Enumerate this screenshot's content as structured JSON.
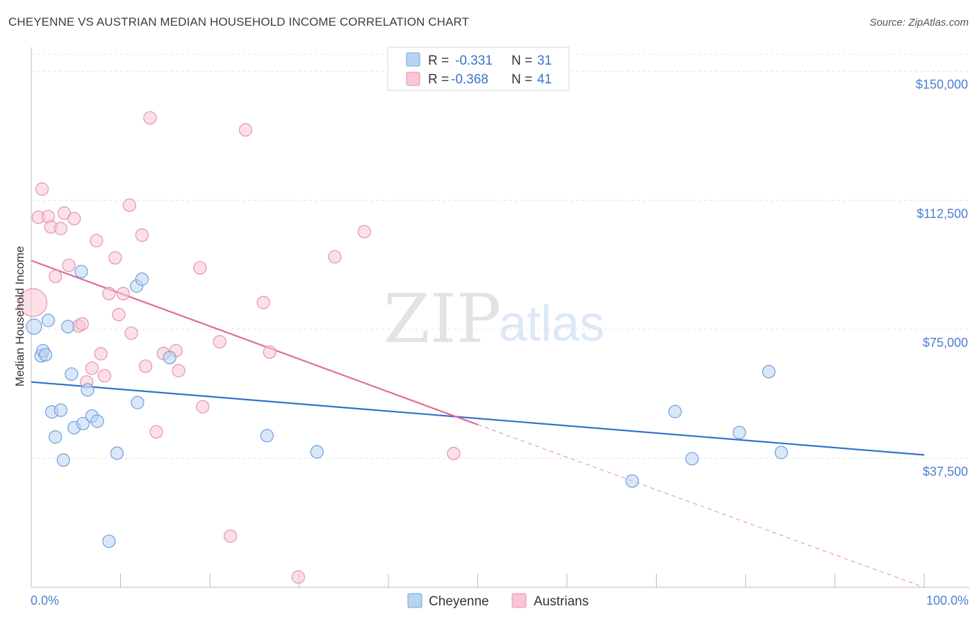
{
  "header": {
    "title": "CHEYENNE VS AUSTRIAN MEDIAN HOUSEHOLD INCOME CORRELATION CHART",
    "source": "Source: ZipAtlas.com"
  },
  "watermark": {
    "zip": "ZIP",
    "atlas": "atlas"
  },
  "legend": {
    "r_label": "R =",
    "n_label": "N =",
    "entries": [
      {
        "r": "-0.331",
        "n": "31"
      },
      {
        "r": "-0.368",
        "n": "41"
      }
    ]
  },
  "bottom_legend": [
    "Cheyenne",
    "Austrians"
  ],
  "colors": {
    "cheyenne_fill": "#b9d3f2",
    "cheyenne_stroke": "#6e9fdc",
    "cheyenne_line": "#2f72cc",
    "austrians_fill": "#f8c6d6",
    "austrians_stroke": "#e890ae",
    "austrians_line": "#e06b96",
    "tick_text": "#4a7fd0"
  },
  "chart_data": {
    "type": "scatter",
    "title": "CHEYENNE VS AUSTRIAN MEDIAN HOUSEHOLD INCOME CORRELATION CHART",
    "xlabel": "",
    "ylabel": "Median Household Income",
    "xlim": [
      0,
      100
    ],
    "ylim": [
      0,
      155000
    ],
    "x_tick_labels": [
      "0.0%",
      "100.0%"
    ],
    "y_ticks": [
      {
        "value": 37500,
        "label": "$37,500"
      },
      {
        "value": 75000,
        "label": "$75,000"
      },
      {
        "value": 112500,
        "label": "$112,500"
      },
      {
        "value": 150000,
        "label": "$150,000"
      }
    ],
    "grid": true,
    "legend_position": "top-center",
    "series": [
      {
        "name": "Cheyenne",
        "r": -0.331,
        "n": 31,
        "points": [
          [
            0.3,
            75800
          ],
          [
            1.1,
            67300
          ],
          [
            1.3,
            68800
          ],
          [
            1.6,
            67600
          ],
          [
            1.9,
            77600
          ],
          [
            2.3,
            51000
          ],
          [
            2.7,
            43700
          ],
          [
            3.3,
            51500
          ],
          [
            3.6,
            37000
          ],
          [
            4.1,
            75800
          ],
          [
            4.5,
            62000
          ],
          [
            4.8,
            46400
          ],
          [
            5.6,
            91800
          ],
          [
            5.8,
            47600
          ],
          [
            6.3,
            57400
          ],
          [
            6.8,
            49800
          ],
          [
            7.4,
            48300
          ],
          [
            8.7,
            13400
          ],
          [
            9.6,
            39000
          ],
          [
            11.8,
            87600
          ],
          [
            11.9,
            53700
          ],
          [
            12.4,
            89600
          ],
          [
            15.5,
            66800
          ],
          [
            26.4,
            44100
          ],
          [
            32.0,
            39400
          ],
          [
            67.3,
            30900
          ],
          [
            72.1,
            51100
          ],
          [
            74.0,
            37400
          ],
          [
            79.3,
            45000
          ],
          [
            82.6,
            62700
          ],
          [
            84.0,
            39200
          ]
        ],
        "trend": {
          "x": [
            0,
            100
          ],
          "y": [
            59700,
            38500
          ]
        }
      },
      {
        "name": "Austrians",
        "r": -0.368,
        "n": 41,
        "points": [
          [
            0.2,
            82800
          ],
          [
            0.8,
            107600
          ],
          [
            1.2,
            115800
          ],
          [
            1.9,
            107800
          ],
          [
            2.2,
            104800
          ],
          [
            2.7,
            90400
          ],
          [
            3.3,
            104300
          ],
          [
            3.7,
            108800
          ],
          [
            4.2,
            93600
          ],
          [
            4.8,
            107200
          ],
          [
            5.3,
            76000
          ],
          [
            5.7,
            76600
          ],
          [
            6.2,
            59700
          ],
          [
            6.8,
            63700
          ],
          [
            7.3,
            100800
          ],
          [
            7.8,
            67900
          ],
          [
            8.2,
            61500
          ],
          [
            8.7,
            85400
          ],
          [
            9.4,
            95800
          ],
          [
            9.8,
            79300
          ],
          [
            10.3,
            85400
          ],
          [
            11.0,
            111100
          ],
          [
            11.2,
            73900
          ],
          [
            12.4,
            102400
          ],
          [
            12.8,
            64300
          ],
          [
            13.3,
            136500
          ],
          [
            14.0,
            45200
          ],
          [
            14.8,
            68000
          ],
          [
            16.2,
            68800
          ],
          [
            16.5,
            63000
          ],
          [
            18.9,
            92900
          ],
          [
            19.2,
            52500
          ],
          [
            21.1,
            71400
          ],
          [
            22.3,
            14900
          ],
          [
            24.0,
            133000
          ],
          [
            26.0,
            82800
          ],
          [
            26.7,
            68400
          ],
          [
            29.9,
            3000
          ],
          [
            34.0,
            96100
          ],
          [
            37.3,
            103400
          ],
          [
            47.3,
            38900
          ]
        ],
        "trend": {
          "x": [
            0,
            50
          ],
          "y": [
            95000,
            47300
          ]
        },
        "trend_extension": {
          "x": [
            50,
            100
          ],
          "y": [
            47300,
            0
          ]
        }
      }
    ]
  }
}
